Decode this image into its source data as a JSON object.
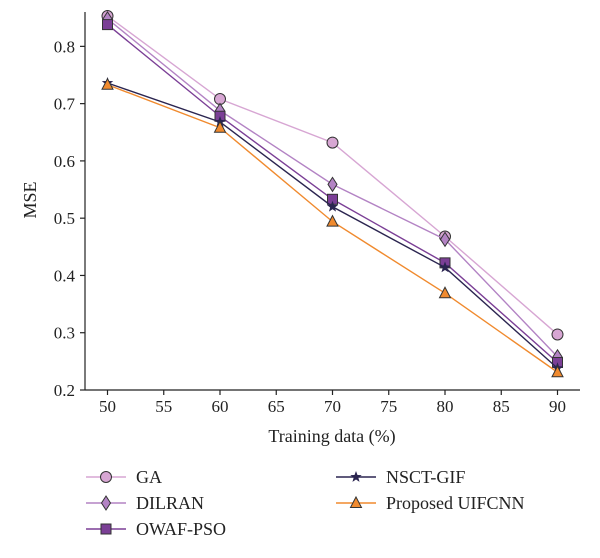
{
  "chart_data": {
    "type": "line",
    "xlabel": "Training data (%)",
    "ylabel": "MSE",
    "xlim": [
      48,
      92
    ],
    "ylim": [
      0.2,
      0.86
    ],
    "xticks": [
      50,
      55,
      60,
      65,
      70,
      75,
      80,
      85,
      90
    ],
    "yticks": [
      0.2,
      0.3,
      0.4,
      0.5,
      0.6,
      0.7,
      0.8
    ],
    "grid": false,
    "legend_position": "bottom",
    "x": [
      50,
      60,
      70,
      80,
      90
    ],
    "series": [
      {
        "name": "GA",
        "values": [
          0.853,
          0.708,
          0.632,
          0.468,
          0.297
        ],
        "color": "#d7a6d3",
        "marker": "circle"
      },
      {
        "name": "DILRAN",
        "values": [
          0.848,
          0.688,
          0.559,
          0.463,
          0.258
        ],
        "color": "#b383c4",
        "marker": "diamond"
      },
      {
        "name": "OWAF-PSO",
        "values": [
          0.838,
          0.678,
          0.533,
          0.422,
          0.248
        ],
        "color": "#7b3f96",
        "marker": "square"
      },
      {
        "name": "NSCT-GIF",
        "values": [
          0.736,
          0.668,
          0.52,
          0.414,
          0.238
        ],
        "color": "#2b2550",
        "marker": "star"
      },
      {
        "name": "Proposed UIFCNN",
        "values": [
          0.733,
          0.658,
          0.494,
          0.369,
          0.231
        ],
        "color": "#f08a2e",
        "marker": "triangle"
      }
    ]
  }
}
